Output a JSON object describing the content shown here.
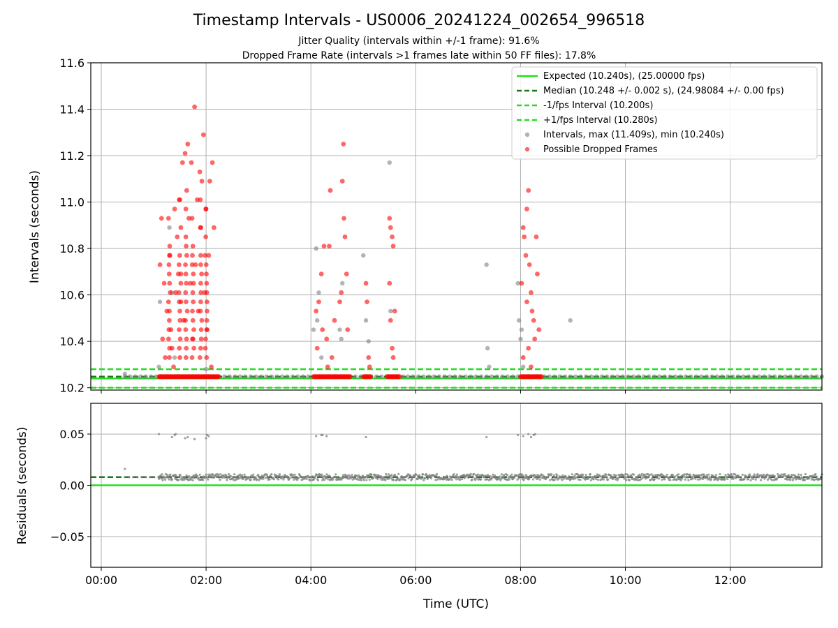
{
  "chart_data": [
    {
      "type": "scatter",
      "title": "Timestamp Intervals - US0006_20241224_002654_996518",
      "subtitle_lines": [
        "Jitter Quality (intervals within +/-1 frame): 91.6%",
        "Dropped Frame Rate (intervals >1 frames late within 50 FF files): 17.8%"
      ],
      "xlabel": "",
      "ylabel": "Intervals (seconds)",
      "xlim_hours": [
        -0.2,
        13.75
      ],
      "ylim": [
        10.19,
        11.6
      ],
      "yticks": [
        "10.2",
        "10.4",
        "10.6",
        "10.8",
        "11.0",
        "11.2",
        "11.4",
        "11.6"
      ],
      "grid": true,
      "legend_position": "top-right",
      "reference_lines": [
        {
          "name": "Expected (10.240s), (25.00000 fps)",
          "y": 10.24,
          "style": "solid",
          "color": "#22dd22"
        },
        {
          "name": "Median (10.248 +/- 0.002 s), (24.98084 +/- 0.00 fps)",
          "y": 10.248,
          "style": "dashed",
          "color": "#1a7a1a"
        },
        {
          "name": "-1/fps Interval (10.200s)",
          "y": 10.2,
          "style": "dashed",
          "color": "#22dd22"
        },
        {
          "name": "+1/fps Interval (10.280s)",
          "y": 10.28,
          "style": "dashed",
          "color": "#22dd22"
        }
      ],
      "series": [
        {
          "name": "Intervals, max (11.409s), min (10.240s)",
          "color": "#808080",
          "baseline": {
            "y": 10.248,
            "x_range_hours": [
              0.45,
              13.75
            ],
            "step_hours": 0.1
          },
          "points": [
            [
              0.45,
              10.26
            ],
            [
              1.1,
              10.29
            ],
            [
              1.12,
              10.57
            ],
            [
              1.3,
              10.89
            ],
            [
              1.35,
              10.61
            ],
            [
              1.4,
              10.33
            ],
            [
              2.0,
              10.28
            ],
            [
              4.05,
              10.45
            ],
            [
              4.1,
              10.8
            ],
            [
              4.12,
              10.49
            ],
            [
              4.15,
              10.61
            ],
            [
              4.2,
              10.33
            ],
            [
              4.55,
              10.45
            ],
            [
              4.58,
              10.41
            ],
            [
              4.6,
              10.65
            ],
            [
              5.0,
              10.77
            ],
            [
              5.05,
              10.49
            ],
            [
              5.1,
              10.4
            ],
            [
              5.5,
              11.17
            ],
            [
              5.52,
              10.53
            ],
            [
              7.35,
              10.73
            ],
            [
              7.37,
              10.37
            ],
            [
              7.4,
              10.29
            ],
            [
              7.95,
              10.65
            ],
            [
              7.97,
              10.49
            ],
            [
              8.0,
              10.41
            ],
            [
              8.02,
              10.45
            ],
            [
              8.05,
              10.29
            ],
            [
              8.95,
              10.49
            ]
          ]
        },
        {
          "name": "Possible Dropped Frames",
          "color": "#ff0000",
          "clusters": [
            {
              "x_range_hours": [
                1.1,
                2.25
              ],
              "baseline_y": 10.248,
              "high_points": [
                [
                  1.12,
                  10.73
                ],
                [
                  1.15,
                  10.93
                ],
                [
                  1.17,
                  10.41
                ],
                [
                  1.2,
                  10.65
                ],
                [
                  1.22,
                  10.33
                ],
                [
                  1.25,
                  10.53
                ],
                [
                  1.3,
                  10.77
                ],
                [
                  1.33,
                  10.45
                ],
                [
                  1.35,
                  10.37
                ],
                [
                  1.38,
                  10.29
                ],
                [
                  1.4,
                  10.97
                ],
                [
                  1.42,
                  10.61
                ],
                [
                  1.45,
                  10.85
                ],
                [
                  1.47,
                  10.69
                ],
                [
                  1.5,
                  11.01
                ],
                [
                  1.52,
                  10.57
                ],
                [
                  1.55,
                  11.17
                ],
                [
                  1.57,
                  10.49
                ],
                [
                  1.6,
                  11.21
                ],
                [
                  1.62,
                  10.81
                ],
                [
                  1.63,
                  11.05
                ],
                [
                  1.65,
                  11.25
                ],
                [
                  1.67,
                  10.93
                ],
                [
                  1.7,
                  10.65
                ],
                [
                  1.72,
                  11.17
                ],
                [
                  1.75,
                  10.41
                ],
                [
                  1.78,
                  11.41
                ],
                [
                  1.8,
                  10.73
                ],
                [
                  1.83,
                  11.01
                ],
                [
                  1.85,
                  10.53
                ],
                [
                  1.88,
                  11.13
                ],
                [
                  1.9,
                  10.89
                ],
                [
                  1.92,
                  11.09
                ],
                [
                  1.95,
                  11.29
                ],
                [
                  1.97,
                  10.61
                ],
                [
                  2.0,
                  10.97
                ],
                [
                  2.02,
                  10.45
                ],
                [
                  2.05,
                  10.77
                ],
                [
                  2.07,
                  11.09
                ],
                [
                  2.1,
                  10.29
                ],
                [
                  2.12,
                  11.17
                ],
                [
                  2.15,
                  10.89
                ]
              ]
            },
            {
              "x_range_hours": [
                4.05,
                4.75
              ],
              "baseline_y": 10.248,
              "high_points": [
                [
                  4.1,
                  10.53
                ],
                [
                  4.12,
                  10.37
                ],
                [
                  4.15,
                  10.57
                ],
                [
                  4.2,
                  10.69
                ],
                [
                  4.22,
                  10.45
                ],
                [
                  4.25,
                  10.81
                ],
                [
                  4.3,
                  10.41
                ],
                [
                  4.32,
                  10.29
                ],
                [
                  4.35,
                  10.81
                ],
                [
                  4.37,
                  11.05
                ],
                [
                  4.4,
                  10.33
                ],
                [
                  4.45,
                  10.49
                ],
                [
                  4.55,
                  10.57
                ],
                [
                  4.58,
                  10.61
                ],
                [
                  4.6,
                  11.09
                ],
                [
                  4.62,
                  11.25
                ],
                [
                  4.63,
                  10.93
                ],
                [
                  4.65,
                  10.85
                ],
                [
                  4.68,
                  10.69
                ],
                [
                  4.7,
                  10.45
                ]
              ]
            },
            {
              "x_range_hours": [
                5.0,
                5.15
              ],
              "baseline_y": 10.248,
              "high_points": [
                [
                  5.05,
                  10.65
                ],
                [
                  5.07,
                  10.57
                ],
                [
                  5.1,
                  10.33
                ],
                [
                  5.12,
                  10.29
                ]
              ]
            },
            {
              "x_range_hours": [
                5.45,
                5.7
              ],
              "baseline_y": 10.248,
              "high_points": [
                [
                  5.5,
                  10.93
                ],
                [
                  5.52,
                  10.89
                ],
                [
                  5.55,
                  10.85
                ],
                [
                  5.57,
                  10.81
                ],
                [
                  5.5,
                  10.65
                ],
                [
                  5.52,
                  10.49
                ],
                [
                  5.55,
                  10.37
                ],
                [
                  5.57,
                  10.33
                ],
                [
                  5.6,
                  10.53
                ]
              ]
            },
            {
              "x_range_hours": [
                8.0,
                8.4
              ],
              "baseline_y": 10.248,
              "high_points": [
                [
                  8.02,
                  10.65
                ],
                [
                  8.05,
                  10.89
                ],
                [
                  8.07,
                  10.85
                ],
                [
                  8.1,
                  10.77
                ],
                [
                  8.12,
                  10.97
                ],
                [
                  8.15,
                  11.05
                ],
                [
                  8.17,
                  10.73
                ],
                [
                  8.2,
                  10.61
                ],
                [
                  8.22,
                  10.53
                ],
                [
                  8.25,
                  10.49
                ],
                [
                  8.27,
                  10.41
                ],
                [
                  8.3,
                  10.85
                ],
                [
                  8.32,
                  10.69
                ],
                [
                  8.35,
                  10.45
                ],
                [
                  8.12,
                  10.57
                ],
                [
                  8.15,
                  10.37
                ],
                [
                  8.05,
                  10.33
                ],
                [
                  8.2,
                  10.29
                ]
              ]
            }
          ]
        }
      ]
    },
    {
      "type": "scatter",
      "xlabel": "Time (UTC)",
      "ylabel": "Residuals (seconds)",
      "xlim_hours": [
        -0.2,
        13.75
      ],
      "ylim": [
        -0.08,
        0.08
      ],
      "yticks": [
        "−0.05",
        "0.00",
        "0.05"
      ],
      "xticks": [
        "00:00",
        "02:00",
        "04:00",
        "06:00",
        "08:00",
        "10:00",
        "12:00"
      ],
      "grid": true,
      "reference_lines": [
        {
          "y": 0.0,
          "style": "solid",
          "color": "#22dd22"
        },
        {
          "y": 0.008,
          "style": "dashed",
          "color": "#1a7a1a"
        }
      ],
      "series": [
        {
          "name": "Residuals",
          "color": "#808080",
          "baseline": {
            "y": 0.008,
            "x_range_hours": [
              0.45,
              13.75
            ],
            "step_hours": 0.05,
            "spread": 0.003
          },
          "points": [
            [
              0.45,
              0.016
            ],
            [
              1.1,
              0.05
            ],
            [
              1.35,
              0.047
            ],
            [
              1.4,
              0.049
            ],
            [
              1.42,
              0.05
            ],
            [
              1.6,
              0.046
            ],
            [
              1.65,
              0.047
            ],
            [
              1.78,
              0.045
            ],
            [
              2.0,
              0.046
            ],
            [
              2.02,
              0.049
            ],
            [
              2.05,
              0.048
            ],
            [
              4.1,
              0.048
            ],
            [
              4.2,
              0.049
            ],
            [
              4.22,
              0.049
            ],
            [
              4.3,
              0.048
            ],
            [
              5.05,
              0.047
            ],
            [
              7.35,
              0.047
            ],
            [
              7.95,
              0.049
            ],
            [
              8.05,
              0.048
            ],
            [
              8.15,
              0.05
            ],
            [
              8.2,
              0.047
            ],
            [
              8.25,
              0.049
            ],
            [
              8.28,
              0.05
            ]
          ]
        }
      ]
    }
  ]
}
